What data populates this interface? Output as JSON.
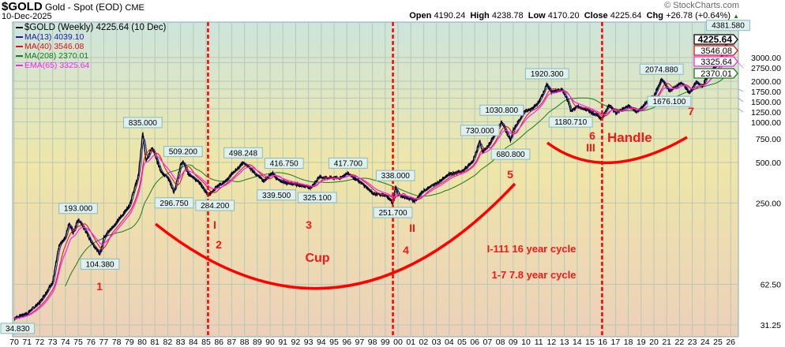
{
  "header": {
    "symbol": "$GOLD",
    "name": "Gold - Spot (EOD)",
    "exchange": "CME",
    "date": "10-Dec-2025",
    "watermark": "© StockCharts.com",
    "open_label": "Open",
    "open": "4190.24",
    "high_label": "High",
    "high": "4238.78",
    "low_label": "Low",
    "low": "4170.20",
    "close_label": "Close",
    "close": "4225.64",
    "chg_label": "Chg",
    "chg": "+26.78 (+0.64%)"
  },
  "legend": [
    {
      "text": "$GOLD (Weekly) 4225.64 (10 Dec)",
      "color": "#000000"
    },
    {
      "text": "MA(13) 4039.10",
      "color": "#1a1aa0"
    },
    {
      "text": "MA(40) 3546.08",
      "color": "#e01010"
    },
    {
      "text": "MA(208) 2370.01",
      "color": "#1a7a1a"
    },
    {
      "text": "EMA(65) 3325.64",
      "color": "#ff20ff"
    }
  ],
  "chart_data": {
    "type": "line",
    "title": "$GOLD (Weekly)",
    "yscale": "log",
    "xlim": [
      1970,
      2026.3
    ],
    "ylim": [
      27,
      4700
    ],
    "x_ticks": [
      "70",
      "71",
      "72",
      "73",
      "74",
      "75",
      "76",
      "77",
      "78",
      "79",
      "80",
      "81",
      "82",
      "83",
      "84",
      "85",
      "86",
      "87",
      "88",
      "89",
      "90",
      "91",
      "92",
      "93",
      "94",
      "95",
      "96",
      "97",
      "98",
      "99",
      "00",
      "01",
      "02",
      "03",
      "04",
      "05",
      "06",
      "07",
      "08",
      "09",
      "10",
      "11",
      "12",
      "13",
      "14",
      "15",
      "16",
      "17",
      "18",
      "19",
      "20",
      "21",
      "22",
      "23",
      "24",
      "25",
      "26"
    ],
    "y_ticks": [
      "3000.00",
      "2750.00",
      "2000.00",
      "1750.00",
      "1500.00",
      "1250.00",
      "1000.00",
      "750.00",
      "500.00",
      "250.00",
      "62.50",
      "31.25"
    ],
    "y_tick_values": [
      3000,
      2750,
      2000,
      1750,
      1500,
      1250,
      1000,
      750,
      500,
      250,
      62.5,
      31.25
    ],
    "price": [
      [
        1970,
        35
      ],
      [
        1971,
        38
      ],
      [
        1972,
        46
      ],
      [
        1973,
        65
      ],
      [
        1973.5,
        120
      ],
      [
        1974,
        140
      ],
      [
        1974.3,
        180
      ],
      [
        1974.6,
        150
      ],
      [
        1975,
        190
      ],
      [
        1975.5,
        160
      ],
      [
        1976,
        130
      ],
      [
        1976.7,
        104.4
      ],
      [
        1977,
        140
      ],
      [
        1978,
        180
      ],
      [
        1979,
        240
      ],
      [
        1979.7,
        400
      ],
      [
        1980.05,
        835
      ],
      [
        1980.3,
        520
      ],
      [
        1980.8,
        650
      ],
      [
        1981,
        560
      ],
      [
        1981.5,
        420
      ],
      [
        1982,
        390
      ],
      [
        1982.5,
        297
      ],
      [
        1983,
        480
      ],
      [
        1983.2,
        509
      ],
      [
        1983.6,
        410
      ],
      [
        1984,
        390
      ],
      [
        1984.5,
        350
      ],
      [
        1985,
        300
      ],
      [
        1985.15,
        284
      ],
      [
        1986,
        340
      ],
      [
        1986.5,
        360
      ],
      [
        1987,
        410
      ],
      [
        1987.9,
        498
      ],
      [
        1988.5,
        450
      ],
      [
        1989,
        400
      ],
      [
        1989.5,
        365
      ],
      [
        1990,
        400
      ],
      [
        1990.2,
        417
      ],
      [
        1990.6,
        370
      ],
      [
        1991,
        360
      ],
      [
        1992,
        345
      ],
      [
        1993.2,
        325
      ],
      [
        1993.8,
        390
      ],
      [
        1994.5,
        385
      ],
      [
        1995.5,
        385
      ],
      [
        1996.1,
        418
      ],
      [
        1996.8,
        370
      ],
      [
        1997.5,
        330
      ],
      [
        1998,
        295
      ],
      [
        1999,
        285
      ],
      [
        1999.6,
        252
      ],
      [
        1999.8,
        330
      ],
      [
        2000,
        290
      ],
      [
        2001,
        265
      ],
      [
        2001.3,
        260
      ],
      [
        2002,
        310
      ],
      [
        2003,
        350
      ],
      [
        2004,
        410
      ],
      [
        2005,
        430
      ],
      [
        2005.8,
        500
      ],
      [
        2006.4,
        720
      ],
      [
        2006.6,
        600
      ],
      [
        2007,
        650
      ],
      [
        2008.1,
        1000
      ],
      [
        2008.8,
        720
      ],
      [
        2009,
        870
      ],
      [
        2009.9,
        1200
      ],
      [
        2010.5,
        1250
      ],
      [
        2011,
        1400
      ],
      [
        2011.65,
        1900
      ],
      [
        2012,
        1650
      ],
      [
        2012.8,
        1750
      ],
      [
        2013.3,
        1400
      ],
      [
        2013.5,
        1200
      ],
      [
        2014,
        1300
      ],
      [
        2015,
        1200
      ],
      [
        2015.95,
        1060
      ],
      [
        2016.5,
        1350
      ],
      [
        2017,
        1150
      ],
      [
        2018,
        1320
      ],
      [
        2018.7,
        1180
      ],
      [
        2019.5,
        1420
      ],
      [
        2020,
        1550
      ],
      [
        2020.6,
        2050
      ],
      [
        2021.2,
        1700
      ],
      [
        2022.2,
        1950
      ],
      [
        2022.8,
        1630
      ],
      [
        2023.3,
        2000
      ],
      [
        2023.8,
        1820
      ],
      [
        2024,
        2050
      ],
      [
        2024.5,
        2400
      ],
      [
        2025,
        2700
      ],
      [
        2025.5,
        3350
      ],
      [
        2025.8,
        4350
      ],
      [
        2025.95,
        4225.64
      ]
    ],
    "price_labels": [
      {
        "text": "34.830",
        "x": 1970.1,
        "y": 34.83,
        "pos": "below"
      },
      {
        "text": "193.000",
        "x": 1975,
        "y": 193,
        "pos": "above"
      },
      {
        "text": "104.380",
        "x": 1976.7,
        "y": 104.38,
        "pos": "below"
      },
      {
        "text": "835.000",
        "x": 1980.05,
        "y": 835,
        "pos": "above"
      },
      {
        "text": "509.200",
        "x": 1983.2,
        "y": 509.2,
        "pos": "above"
      },
      {
        "text": "296.750",
        "x": 1982.5,
        "y": 296.75,
        "pos": "below"
      },
      {
        "text": "284.200",
        "x": 1985.15,
        "y": 284.2,
        "pos": "below"
      },
      {
        "text": "498.248",
        "x": 1987.9,
        "y": 498.248,
        "pos": "above"
      },
      {
        "text": "416.750",
        "x": 1990.7,
        "y": 416.75,
        "pos": "above"
      },
      {
        "text": "339.500",
        "x": 1990.5,
        "y": 339.5,
        "pos": "below"
      },
      {
        "text": "325.100",
        "x": 1993.2,
        "y": 325.1,
        "pos": "below"
      },
      {
        "text": "417.700",
        "x": 1996.1,
        "y": 417.7,
        "pos": "above"
      },
      {
        "text": "338.000",
        "x": 1999.8,
        "y": 338,
        "pos": "above"
      },
      {
        "text": "251.700",
        "x": 1999.6,
        "y": 251.7,
        "pos": "below"
      },
      {
        "text": "730.000",
        "x": 2006.4,
        "y": 730,
        "pos": "above"
      },
      {
        "text": "1030.800",
        "x": 2008.1,
        "y": 1030.8,
        "pos": "above"
      },
      {
        "text": "680.800",
        "x": 2008.8,
        "y": 680.8,
        "pos": "below"
      },
      {
        "text": "1920.300",
        "x": 2011.65,
        "y": 1920.3,
        "pos": "above"
      },
      {
        "text": "1180.710",
        "x": 2013.5,
        "y": 1180.71,
        "pos": "below"
      },
      {
        "text": "2074.880",
        "x": 2020.6,
        "y": 2074.88,
        "pos": "above"
      },
      {
        "text": "1676.100",
        "x": 2021.2,
        "y": 1676.1,
        "pos": "below"
      },
      {
        "text": "4381.580",
        "x": 2025.8,
        "y": 4381.58,
        "pos": "above"
      }
    ],
    "last_value_tags": [
      {
        "text": "4225.64",
        "color": "#000000",
        "value": 4225.64
      },
      {
        "text": "3546.08",
        "color": "#e01010",
        "value": 3546.08
      },
      {
        "text": "3325.64",
        "color": "#ff20ff",
        "value": 3325.64
      },
      {
        "text": "2370.01",
        "color": "#1a7a1a",
        "value": 2370.01
      }
    ],
    "cycle_lines": [
      1985.15,
      1999.6,
      2015.95
    ],
    "annotations": [
      "1",
      "I",
      "2",
      "3",
      "Cup",
      "II",
      "4",
      "5",
      "I-111 16 year cycle",
      "1-7 7.8 year cycle",
      "6",
      "III",
      "Handle",
      "7"
    ]
  }
}
